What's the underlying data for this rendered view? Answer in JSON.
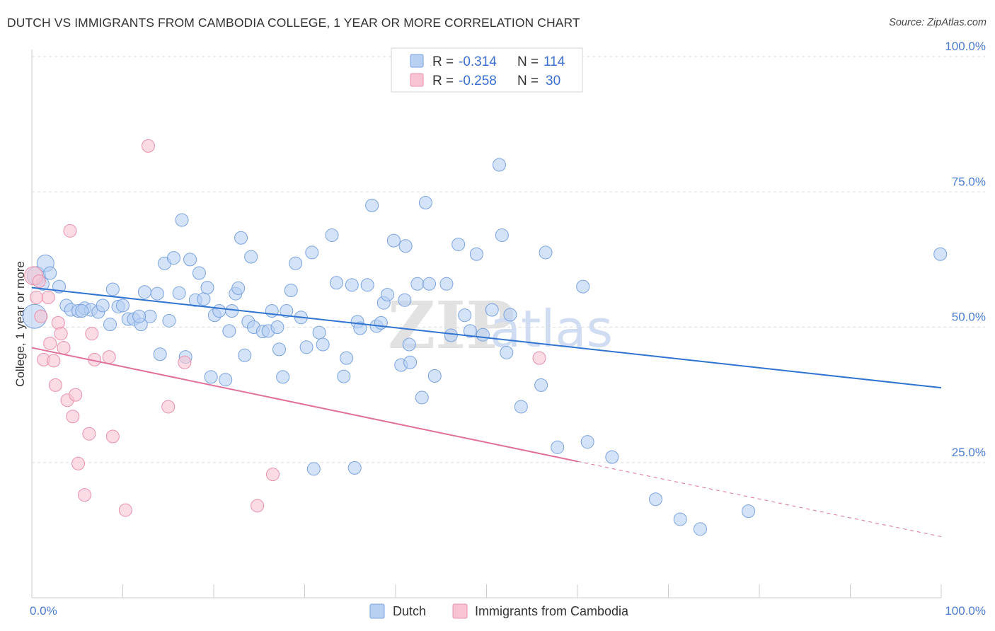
{
  "title": "DUTCH VS IMMIGRANTS FROM CAMBODIA COLLEGE, 1 YEAR OR MORE CORRELATION CHART",
  "source": "Source: ZipAtlas.com",
  "watermark": {
    "zip": "ZIP",
    "atlas": "atlas"
  },
  "colors": {
    "dutch_fill": "#b8d1f3",
    "dutch_stroke": "#7aa3df",
    "dutch_line": "#2f74d0",
    "cambodia_fill": "#f8c4d4",
    "cambodia_stroke": "#e990ab",
    "cambodia_line": "#e0709a",
    "grid": "#dddddd",
    "tick_text": "#4a7bd0"
  },
  "legend": {
    "rows": [
      {
        "r_label": "R =",
        "r_value": "-0.314",
        "n_label": "N =",
        "n_value": "114"
      },
      {
        "r_label": "R =",
        "r_value": "-0.258",
        "n_label": "N =",
        "n_value": "30"
      }
    ]
  },
  "bottom_legend": [
    "Dutch",
    "Immigrants from Cambodia"
  ],
  "chart_data": {
    "type": "scatter",
    "title": "DUTCH VS IMMIGRANTS FROM CAMBODIA COLLEGE, 1 YEAR OR MORE CORRELATION CHART",
    "xlabel": "",
    "ylabel": "College, 1 year or more",
    "xlim": [
      0,
      100
    ],
    "ylim": [
      0,
      100
    ],
    "x_tick_labels": [
      "0.0%",
      "100.0%"
    ],
    "y_ticks": [
      25,
      50,
      75,
      100
    ],
    "y_tick_labels": [
      "25.0%",
      "50.0%",
      "75.0%",
      "100.0%"
    ],
    "series": [
      {
        "name": "Dutch",
        "R": -0.314,
        "N": 114,
        "trend": {
          "x0": 0,
          "y0": 57.3,
          "x1": 100,
          "y1": 38.8
        },
        "points": [
          [
            0.3,
            52.0
          ],
          [
            0.5,
            59.5
          ],
          [
            1.5,
            61.8
          ],
          [
            2.0,
            60.0
          ],
          [
            3.0,
            57.5
          ],
          [
            3.8,
            54.0
          ],
          [
            4.3,
            53.2
          ],
          [
            5.1,
            53.0
          ],
          [
            5.8,
            53.5
          ],
          [
            6.5,
            53.2
          ],
          [
            7.3,
            52.8
          ],
          [
            7.8,
            54.0
          ],
          [
            8.6,
            50.5
          ],
          [
            8.9,
            57.0
          ],
          [
            9.5,
            53.8
          ],
          [
            10.0,
            54.0
          ],
          [
            10.6,
            51.5
          ],
          [
            11.2,
            51.5
          ],
          [
            12.0,
            50.5
          ],
          [
            12.4,
            56.5
          ],
          [
            13.0,
            52.0
          ],
          [
            13.8,
            56.2
          ],
          [
            14.1,
            45.0
          ],
          [
            14.6,
            61.8
          ],
          [
            15.1,
            51.2
          ],
          [
            15.6,
            62.8
          ],
          [
            16.2,
            56.3
          ],
          [
            16.5,
            69.8
          ],
          [
            16.9,
            44.5
          ],
          [
            17.4,
            62.5
          ],
          [
            18.0,
            55.0
          ],
          [
            18.4,
            60.0
          ],
          [
            18.9,
            55.2
          ],
          [
            19.3,
            57.3
          ],
          [
            19.7,
            40.8
          ],
          [
            20.1,
            52.2
          ],
          [
            20.6,
            53.0
          ],
          [
            21.3,
            40.3
          ],
          [
            21.7,
            49.3
          ],
          [
            22.4,
            56.2
          ],
          [
            22.7,
            57.2
          ],
          [
            23.0,
            66.5
          ],
          [
            23.4,
            44.8
          ],
          [
            23.8,
            51.0
          ],
          [
            24.1,
            63.0
          ],
          [
            24.4,
            50.0
          ],
          [
            25.4,
            49.2
          ],
          [
            26.0,
            49.3
          ],
          [
            26.4,
            53.0
          ],
          [
            27.0,
            50.0
          ],
          [
            27.2,
            45.9
          ],
          [
            27.6,
            40.8
          ],
          [
            28.5,
            56.8
          ],
          [
            29.0,
            61.8
          ],
          [
            29.6,
            51.8
          ],
          [
            30.2,
            46.3
          ],
          [
            30.8,
            63.8
          ],
          [
            31.6,
            49.0
          ],
          [
            32.0,
            46.8
          ],
          [
            33.0,
            67.0
          ],
          [
            33.5,
            58.2
          ],
          [
            34.6,
            44.3
          ],
          [
            34.3,
            40.9
          ],
          [
            35.2,
            57.8
          ],
          [
            35.8,
            51.0
          ],
          [
            36.1,
            49.8
          ],
          [
            36.9,
            57.8
          ],
          [
            37.4,
            72.5
          ],
          [
            37.9,
            50.2
          ],
          [
            38.4,
            50.8
          ],
          [
            38.7,
            54.5
          ],
          [
            39.1,
            56.0
          ],
          [
            39.8,
            66.0
          ],
          [
            40.6,
            43.0
          ],
          [
            41.1,
            65.0
          ],
          [
            41.5,
            46.8
          ],
          [
            41.6,
            43.5
          ],
          [
            42.4,
            58.0
          ],
          [
            42.9,
            37.0
          ],
          [
            43.3,
            73.0
          ],
          [
            43.7,
            58.0
          ],
          [
            44.3,
            41.0
          ],
          [
            45.6,
            58.0
          ],
          [
            46.1,
            48.5
          ],
          [
            46.9,
            65.3
          ],
          [
            47.6,
            52.2
          ],
          [
            48.2,
            49.3
          ],
          [
            48.9,
            63.5
          ],
          [
            49.6,
            48.6
          ],
          [
            50.6,
            53.2
          ],
          [
            51.4,
            80.0
          ],
          [
            51.7,
            67.0
          ],
          [
            52.2,
            45.3
          ],
          [
            52.6,
            52.3
          ],
          [
            53.8,
            35.3
          ],
          [
            56.0,
            39.3
          ],
          [
            56.5,
            63.8
          ],
          [
            57.8,
            27.8
          ],
          [
            60.6,
            57.5
          ],
          [
            61.1,
            28.8
          ],
          [
            63.8,
            26.0
          ],
          [
            68.6,
            18.2
          ],
          [
            71.3,
            14.5
          ],
          [
            73.5,
            12.7
          ],
          [
            78.8,
            16.0
          ],
          [
            31.0,
            23.8
          ],
          [
            35.5,
            24.0
          ],
          [
            99.9,
            63.5
          ],
          [
            5.5,
            53.0
          ],
          [
            11.8,
            52.0
          ],
          [
            22.0,
            53.0
          ],
          [
            1.2,
            58.0
          ],
          [
            41.0,
            55.0
          ],
          [
            28.0,
            53.0
          ]
        ]
      },
      {
        "name": "Immigrants from Cambodia",
        "R": -0.258,
        "N": 30,
        "trend": {
          "x0": 0,
          "y0": 46.2,
          "x1": 60,
          "y1": 25.2,
          "dash_x1": 100,
          "dash_y1": 11.3
        },
        "points": [
          [
            0.2,
            59.5
          ],
          [
            0.5,
            55.5
          ],
          [
            1.0,
            52.0
          ],
          [
            1.3,
            44.0
          ],
          [
            2.0,
            47.0
          ],
          [
            2.4,
            43.8
          ],
          [
            2.6,
            39.3
          ],
          [
            2.9,
            50.8
          ],
          [
            3.2,
            48.8
          ],
          [
            3.5,
            46.2
          ],
          [
            3.9,
            36.5
          ],
          [
            4.2,
            67.8
          ],
          [
            4.8,
            37.5
          ],
          [
            5.1,
            24.8
          ],
          [
            5.8,
            19.0
          ],
          [
            6.3,
            30.3
          ],
          [
            6.6,
            48.8
          ],
          [
            6.9,
            44.0
          ],
          [
            8.5,
            44.5
          ],
          [
            8.9,
            29.8
          ],
          [
            10.3,
            16.2
          ],
          [
            12.8,
            83.5
          ],
          [
            15.0,
            35.3
          ],
          [
            16.8,
            43.5
          ],
          [
            24.8,
            17.0
          ],
          [
            26.5,
            22.8
          ],
          [
            55.8,
            44.3
          ],
          [
            1.8,
            55.5
          ],
          [
            0.8,
            58.5
          ],
          [
            4.5,
            33.5
          ]
        ]
      }
    ]
  }
}
